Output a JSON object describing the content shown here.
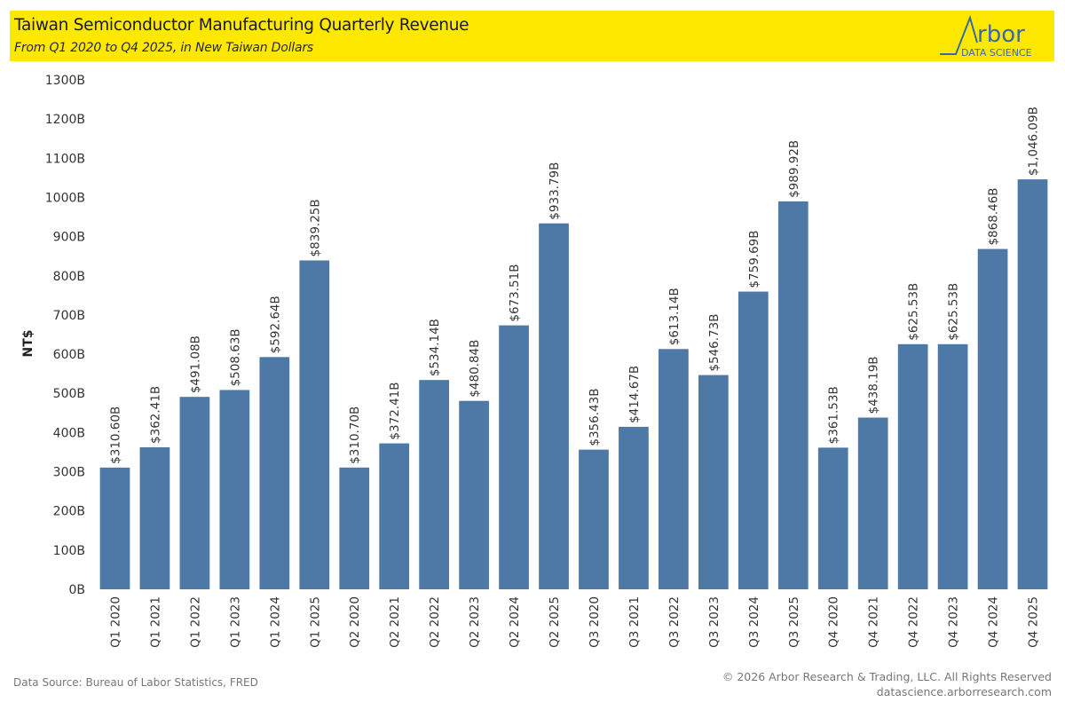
{
  "header": {
    "title": "Taiwan Semiconductor Manufacturing Quarterly Revenue",
    "subtitle": "From Q1 2020 to Q4 2025, in New Taiwan Dollars",
    "logo": {
      "word": "rbor",
      "tagline": "DATA SCIENCE",
      "icon": "arbor-a-mountain-icon"
    },
    "banner_color": "#ffe800"
  },
  "footer": {
    "source": "Data Source: Bureau of Labor Statistics, FRED",
    "copyright": "© 2026 Arbor Research & Trading, LLC. All Rights Reserved",
    "website": "datascience.arborresearch.com"
  },
  "chart_data": {
    "type": "bar",
    "title": "Taiwan Semiconductor Manufacturing Quarterly Revenue",
    "subtitle": "From Q1 2020 to Q4 2025, in New Taiwan Dollars",
    "xlabel": "",
    "ylabel": "NT$",
    "ylim": [
      0,
      1300
    ],
    "yticks": [
      0,
      100,
      200,
      300,
      400,
      500,
      600,
      700,
      800,
      900,
      1000,
      1100,
      1200,
      1300
    ],
    "ytick_labels": [
      "0B",
      "100B",
      "200B",
      "300B",
      "400B",
      "500B",
      "600B",
      "700B",
      "800B",
      "900B",
      "1000B",
      "1100B",
      "1200B",
      "1300B"
    ],
    "grid": false,
    "legend": "none",
    "bar_color": "#4e79a7",
    "categories": [
      "Q1 2020",
      "Q1 2021",
      "Q1 2022",
      "Q1 2023",
      "Q1 2024",
      "Q1 2025",
      "Q2 2020",
      "Q2 2021",
      "Q2 2022",
      "Q2 2023",
      "Q2 2024",
      "Q2 2025",
      "Q3 2020",
      "Q3 2021",
      "Q3 2022",
      "Q3 2023",
      "Q3 2024",
      "Q3 2025",
      "Q4 2020",
      "Q4 2021",
      "Q4 2022",
      "Q4 2023",
      "Q4 2024",
      "Q4 2025"
    ],
    "values": [
      310.6,
      362.41,
      491.08,
      508.63,
      592.64,
      839.25,
      310.7,
      372.41,
      534.14,
      480.84,
      673.51,
      933.79,
      356.43,
      414.67,
      613.14,
      546.73,
      759.69,
      989.92,
      361.53,
      438.19,
      625.53,
      625.53,
      868.46,
      1046.09
    ],
    "data_labels": [
      "$310.60B",
      "$362.41B",
      "$491.08B",
      "$508.63B",
      "$592.64B",
      "$839.25B",
      "$310.70B",
      "$372.41B",
      "$534.14B",
      "$480.84B",
      "$673.51B",
      "$933.79B",
      "$356.43B",
      "$414.67B",
      "$613.14B",
      "$546.73B",
      "$759.69B",
      "$989.92B",
      "$361.53B",
      "$438.19B",
      "$625.53B",
      "$625.53B",
      "$868.46B",
      "$1,046.09B"
    ],
    "units": "Billions of NT$"
  }
}
